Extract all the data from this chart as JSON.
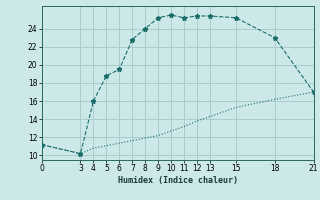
{
  "xlabel": "Humidex (Indice chaleur)",
  "bg_color": "#cce8e8",
  "grid_color": "#aacccc",
  "line_color": "#1a6e6a",
  "curve1_x": [
    0,
    3,
    4,
    5,
    6,
    7,
    8,
    9,
    10,
    11,
    12,
    13,
    15,
    18,
    21
  ],
  "curve1_y": [
    11.2,
    10.2,
    16.0,
    18.8,
    19.5,
    22.8,
    24.0,
    25.2,
    25.5,
    25.2,
    25.4,
    25.4,
    25.2,
    23.0,
    17.0
  ],
  "curve2_x": [
    0,
    3,
    4,
    9,
    10,
    11,
    12,
    13,
    15,
    18,
    21
  ],
  "curve2_y": [
    11.2,
    10.2,
    10.8,
    12.2,
    12.7,
    13.2,
    13.8,
    14.3,
    15.3,
    16.2,
    17.0
  ],
  "xlim": [
    0,
    21
  ],
  "ylim": [
    9.5,
    26.5
  ],
  "xticks": [
    0,
    3,
    4,
    5,
    6,
    7,
    8,
    9,
    10,
    11,
    12,
    13,
    15,
    18,
    21
  ],
  "yticks": [
    10,
    12,
    14,
    16,
    18,
    20,
    22,
    24
  ]
}
